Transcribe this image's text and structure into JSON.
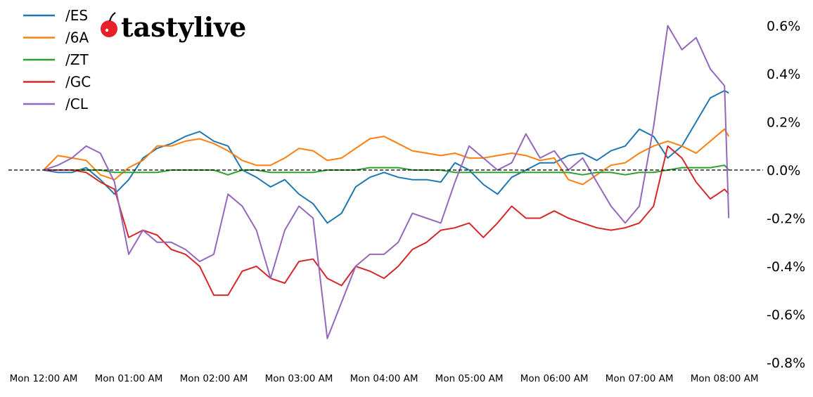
{
  "logo": {
    "text": "tastylive",
    "cherry_color": "#e8202a"
  },
  "chart_data": {
    "type": "line",
    "title": "",
    "xlabel": "",
    "ylabel": "",
    "y_unit": "%",
    "ylim": [
      -0.8,
      0.66
    ],
    "yticks": [
      0.6,
      0.4,
      0.2,
      0.0,
      -0.2,
      -0.4,
      -0.6,
      -0.8
    ],
    "ytick_labels": [
      "0.6%",
      "0.4%",
      "0.2%",
      "0.0%",
      "-0.2%",
      "-0.4%",
      "-0.6%",
      "-0.8%"
    ],
    "xtick_labels": [
      "Mon 12:00 AM",
      "Mon 01:00 AM",
      "Mon 02:00 AM",
      "Mon 03:00 AM",
      "Mon 04:00 AM",
      "Mon 05:00 AM",
      "Mon 06:00 AM",
      "Mon 07:00 AM",
      "Mon 08:00 AM"
    ],
    "xtick_times": [
      "00:00",
      "01:00",
      "02:00",
      "03:00",
      "04:00",
      "05:00",
      "06:00",
      "07:00",
      "08:00"
    ],
    "grid": false,
    "zero_line": "dashed",
    "legend_position": "top-left",
    "x": [
      "00:00",
      "00:10",
      "00:20",
      "00:30",
      "00:40",
      "00:50",
      "01:00",
      "01:10",
      "01:20",
      "01:30",
      "01:40",
      "01:50",
      "02:00",
      "02:10",
      "02:20",
      "02:30",
      "02:40",
      "02:50",
      "03:00",
      "03:10",
      "03:20",
      "03:30",
      "03:40",
      "03:50",
      "04:00",
      "04:10",
      "04:20",
      "04:30",
      "04:40",
      "04:50",
      "05:00",
      "05:10",
      "05:20",
      "05:30",
      "05:40",
      "05:50",
      "06:00",
      "06:10",
      "06:20",
      "06:30",
      "06:40",
      "06:50",
      "07:00",
      "07:10",
      "07:20",
      "07:30",
      "07:40",
      "07:50",
      "08:00",
      "08:03"
    ],
    "series": [
      {
        "name": "/ES",
        "color": "#1f77b4",
        "values": [
          0,
          -0.01,
          -0.01,
          0.01,
          -0.04,
          -0.1,
          -0.04,
          0.05,
          0.09,
          0.11,
          0.14,
          0.16,
          0.12,
          0.1,
          0.0,
          -0.03,
          -0.07,
          -0.04,
          -0.1,
          -0.14,
          -0.22,
          -0.18,
          -0.07,
          -0.03,
          -0.01,
          -0.03,
          -0.04,
          -0.04,
          -0.05,
          0.03,
          0.0,
          -0.06,
          -0.1,
          -0.03,
          0.0,
          0.03,
          0.03,
          0.06,
          0.07,
          0.04,
          0.08,
          0.1,
          0.17,
          0.14,
          0.05,
          0.1,
          0.2,
          0.3,
          0.33,
          0.32
        ]
      },
      {
        "name": "/6A",
        "color": "#ff7f0e",
        "values": [
          0,
          0.06,
          0.05,
          0.04,
          -0.02,
          -0.04,
          0.01,
          0.04,
          0.1,
          0.1,
          0.12,
          0.13,
          0.11,
          0.08,
          0.04,
          0.02,
          0.02,
          0.05,
          0.09,
          0.08,
          0.04,
          0.05,
          0.09,
          0.13,
          0.14,
          0.11,
          0.08,
          0.07,
          0.06,
          0.07,
          0.05,
          0.05,
          0.06,
          0.07,
          0.06,
          0.04,
          0.05,
          -0.04,
          -0.06,
          -0.02,
          0.02,
          0.03,
          0.07,
          0.1,
          0.12,
          0.1,
          0.07,
          0.12,
          0.17,
          0.14
        ]
      },
      {
        "name": "/ZT",
        "color": "#2ca02c",
        "values": [
          0,
          0,
          0,
          0,
          0,
          -0.01,
          -0.01,
          -0.01,
          -0.01,
          0,
          0,
          0,
          0,
          -0.02,
          0,
          0,
          -0.01,
          -0.01,
          -0.01,
          -0.01,
          0,
          0,
          0,
          0.01,
          0.01,
          0.01,
          0,
          0,
          0,
          -0.01,
          -0.01,
          -0.01,
          -0.01,
          -0.01,
          -0.01,
          -0.01,
          -0.01,
          -0.01,
          -0.02,
          -0.01,
          -0.01,
          -0.02,
          -0.01,
          -0.01,
          0,
          0.01,
          0.01,
          0.01,
          0.02,
          0.0
        ]
      },
      {
        "name": "/GC",
        "color": "#d62728",
        "values": [
          0,
          0,
          0,
          -0.01,
          -0.05,
          -0.08,
          -0.28,
          -0.25,
          -0.27,
          -0.33,
          -0.35,
          -0.4,
          -0.52,
          -0.52,
          -0.42,
          -0.4,
          -0.45,
          -0.47,
          -0.38,
          -0.37,
          -0.45,
          -0.48,
          -0.4,
          -0.42,
          -0.45,
          -0.4,
          -0.33,
          -0.3,
          -0.25,
          -0.24,
          -0.22,
          -0.28,
          -0.22,
          -0.15,
          -0.2,
          -0.2,
          -0.17,
          -0.2,
          -0.22,
          -0.24,
          -0.25,
          -0.24,
          -0.22,
          -0.15,
          0.1,
          0.05,
          -0.05,
          -0.12,
          -0.08,
          -0.1
        ]
      },
      {
        "name": "/CL",
        "color": "#9467bd",
        "values": [
          0,
          0.02,
          0.05,
          0.1,
          0.07,
          -0.05,
          -0.35,
          -0.25,
          -0.3,
          -0.3,
          -0.33,
          -0.38,
          -0.35,
          -0.1,
          -0.15,
          -0.25,
          -0.45,
          -0.25,
          -0.15,
          -0.2,
          -0.7,
          -0.55,
          -0.4,
          -0.35,
          -0.35,
          -0.3,
          -0.18,
          -0.2,
          -0.22,
          -0.05,
          0.1,
          0.05,
          0.0,
          0.03,
          0.15,
          0.05,
          0.08,
          0.0,
          0.05,
          -0.05,
          -0.15,
          -0.22,
          -0.15,
          0.18,
          0.6,
          0.5,
          0.55,
          0.42,
          0.35,
          -0.2
        ]
      }
    ]
  }
}
